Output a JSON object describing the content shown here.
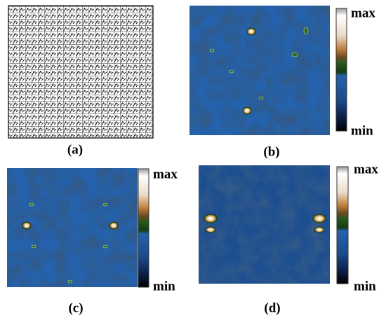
{
  "panels": [
    {
      "label": "(a)"
    },
    {
      "label": "(b)",
      "colorbar": {
        "max": "max",
        "min": "min"
      }
    },
    {
      "label": "(c)",
      "colorbar": {
        "max": "max",
        "min": "min"
      }
    },
    {
      "label": "(d)",
      "colorbar": {
        "max": "max",
        "min": "min"
      }
    }
  ]
}
